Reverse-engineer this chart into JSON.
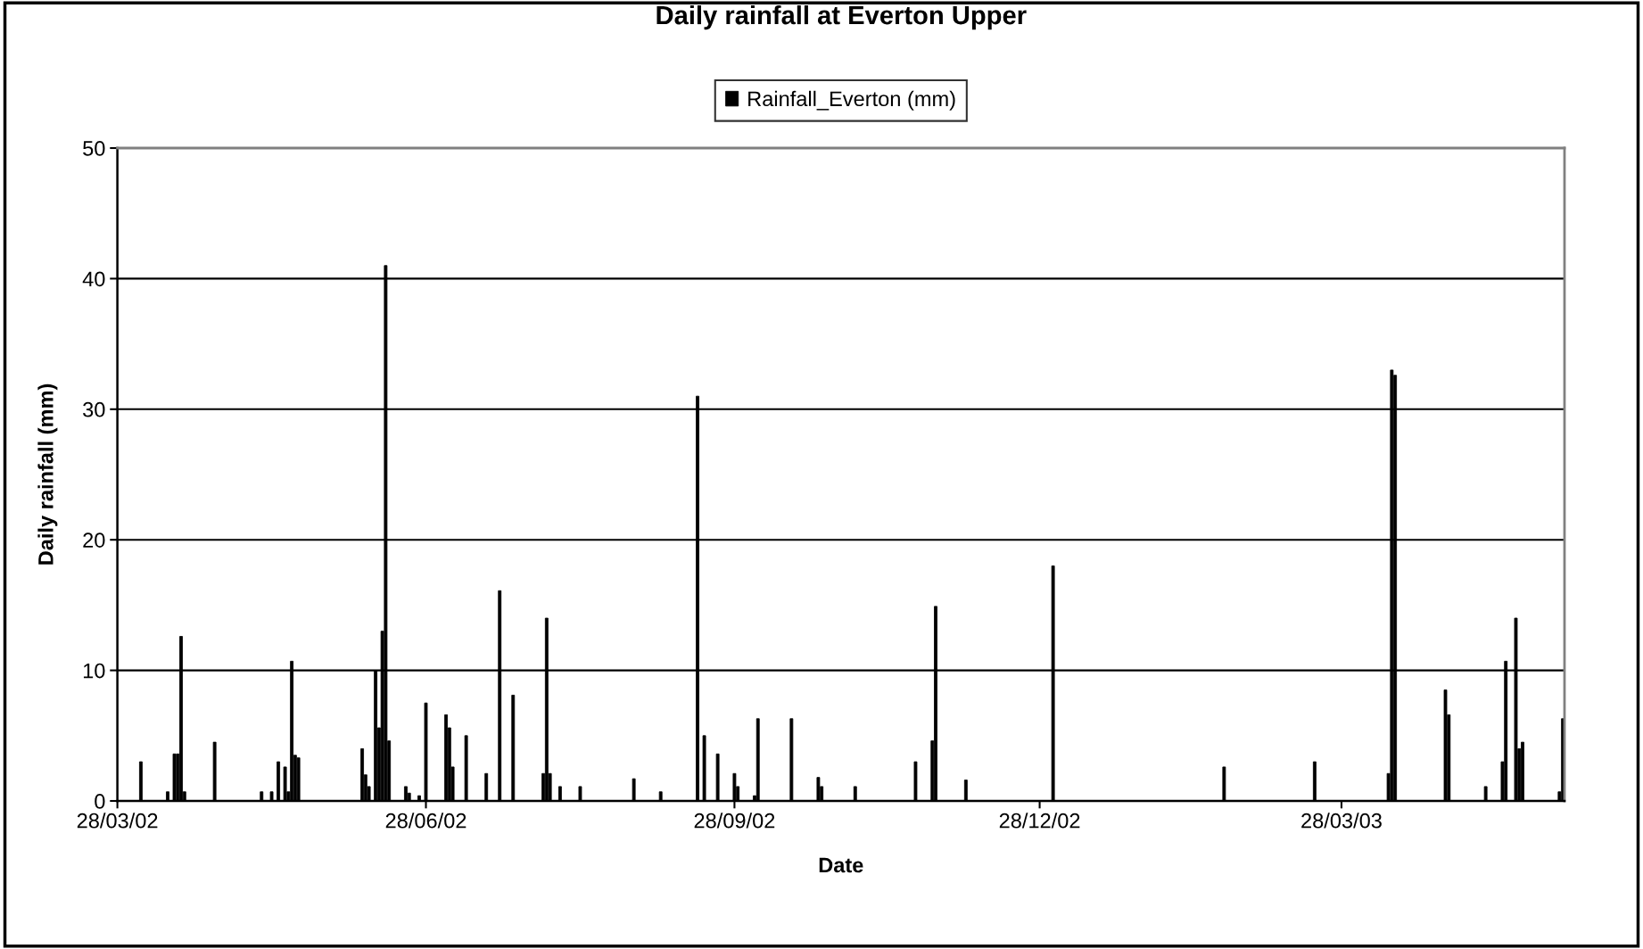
{
  "chart_data": {
    "type": "bar",
    "title": "Daily rainfall at Everton Upper",
    "xlabel": "Date",
    "ylabel": "Daily rainfall (mm)",
    "x": [
      "2002-04-04",
      "2002-04-12",
      "2002-04-14",
      "2002-04-15",
      "2002-04-16",
      "2002-04-17",
      "2002-04-26",
      "2002-05-10",
      "2002-05-13",
      "2002-05-15",
      "2002-05-17",
      "2002-05-18",
      "2002-05-19",
      "2002-05-20",
      "2002-05-21",
      "2002-06-09",
      "2002-06-10",
      "2002-06-11",
      "2002-06-13",
      "2002-06-14",
      "2002-06-15",
      "2002-06-16",
      "2002-06-17",
      "2002-06-22",
      "2002-06-23",
      "2002-06-26",
      "2002-06-28",
      "2002-07-04",
      "2002-07-05",
      "2002-07-06",
      "2002-07-10",
      "2002-07-16",
      "2002-07-20",
      "2002-07-24",
      "2002-08-02",
      "2002-08-03",
      "2002-08-04",
      "2002-08-07",
      "2002-08-13",
      "2002-08-29",
      "2002-09-06",
      "2002-09-17",
      "2002-09-19",
      "2002-09-23",
      "2002-09-28",
      "2002-09-29",
      "2002-10-04",
      "2002-10-05",
      "2002-10-15",
      "2002-10-23",
      "2002-10-24",
      "2002-11-03",
      "2002-11-21",
      "2002-11-26",
      "2002-11-27",
      "2002-12-06",
      "2003-01-01",
      "2003-02-21",
      "2003-03-20",
      "2003-04-11",
      "2003-04-12",
      "2003-04-13",
      "2003-04-28",
      "2003-04-29",
      "2003-05-10",
      "2003-05-15",
      "2003-05-16",
      "2003-05-19",
      "2003-05-20",
      "2003-05-21",
      "2003-06-01",
      "2003-06-02"
    ],
    "series": [
      {
        "name": "Rainfall_Everton (mm)",
        "color": "#000000",
        "values": [
          3.0,
          0.7,
          3.6,
          3.6,
          12.6,
          0.7,
          4.5,
          0.7,
          0.7,
          3.0,
          2.6,
          0.7,
          10.7,
          3.5,
          3.3,
          4.0,
          2.0,
          1.1,
          10.0,
          5.6,
          13.0,
          41.0,
          4.6,
          1.1,
          0.6,
          0.4,
          7.5,
          6.6,
          5.6,
          2.6,
          5.0,
          2.1,
          16.1,
          8.1,
          2.1,
          14.0,
          2.1,
          1.1,
          1.1,
          1.7,
          0.7,
          31.0,
          5.0,
          3.6,
          2.1,
          1.1,
          0.4,
          6.3,
          6.3,
          1.8,
          1.1,
          1.1,
          3.0,
          4.6,
          14.9,
          1.6,
          18.0,
          2.6,
          3.0,
          2.1,
          33.0,
          32.6,
          8.5,
          6.6,
          1.1,
          3.0,
          10.7,
          14.0,
          4.0,
          4.5,
          0.7,
          6.3
        ]
      }
    ],
    "xlim": [
      "2002-03-28",
      "2003-06-02T12:00"
    ],
    "xticks": [
      {
        "value": "2002-03-28",
        "label": "28/03/02"
      },
      {
        "value": "2002-06-28",
        "label": "28/06/02"
      },
      {
        "value": "2002-09-28",
        "label": "28/09/02"
      },
      {
        "value": "2002-12-28",
        "label": "28/12/02"
      },
      {
        "value": "2003-03-28",
        "label": "28/03/03"
      }
    ],
    "ylim": [
      0,
      50
    ],
    "yticks": [
      0,
      10,
      20,
      30,
      40,
      50
    ],
    "grid": "y",
    "legend": "top"
  }
}
